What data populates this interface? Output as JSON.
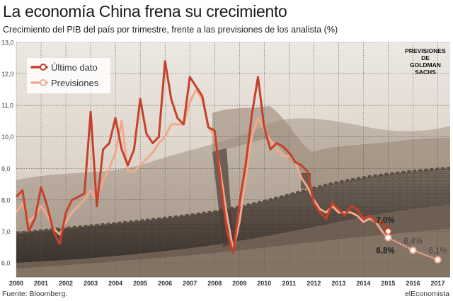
{
  "title": "La economía China frena su crecimiento",
  "subtitle": "Crecimiento del PIB del país por trimestre, frente a las previsiones de los analista (%)",
  "source": "Fuente: Bloomberg.",
  "brand": "elEconomista",
  "colors": {
    "actual": "#c4412a",
    "forecast": "#f0a98c",
    "projection": "#e8a090",
    "grid": "#555555"
  },
  "chart_data": {
    "type": "line",
    "title": "La economía China frena su crecimiento",
    "ylim": [
      6.0,
      13.0
    ],
    "xlim": [
      2000,
      2017.5
    ],
    "grid": true,
    "legend_position": "top-left",
    "y_ticks": [
      "6,0",
      "7,0",
      "8,0",
      "9,0",
      "10,0",
      "11,0",
      "12,0",
      "13,0"
    ],
    "x_ticks": [
      "2000",
      "2001",
      "2002",
      "2003",
      "2004",
      "2005",
      "2006",
      "2007",
      "2008",
      "2009",
      "2010",
      "2011",
      "2012",
      "2013",
      "2014",
      "2015",
      "2016",
      "2017"
    ],
    "series": [
      {
        "name": "Último dato",
        "points": [
          [
            2000.0,
            8.1
          ],
          [
            2000.25,
            8.3
          ],
          [
            2000.5,
            7.0
          ],
          [
            2000.75,
            7.4
          ],
          [
            2001.0,
            8.4
          ],
          [
            2001.25,
            7.8
          ],
          [
            2001.5,
            7.0
          ],
          [
            2001.75,
            6.6
          ],
          [
            2002.0,
            7.6
          ],
          [
            2002.25,
            8.0
          ],
          [
            2002.5,
            8.1
          ],
          [
            2002.75,
            8.2
          ],
          [
            2003.0,
            10.8
          ],
          [
            2003.25,
            7.8
          ],
          [
            2003.5,
            9.6
          ],
          [
            2003.75,
            9.8
          ],
          [
            2004.0,
            10.6
          ],
          [
            2004.25,
            9.6
          ],
          [
            2004.5,
            9.1
          ],
          [
            2004.75,
            9.6
          ],
          [
            2005.0,
            11.2
          ],
          [
            2005.25,
            10.1
          ],
          [
            2005.5,
            9.8
          ],
          [
            2005.75,
            10.0
          ],
          [
            2006.0,
            12.4
          ],
          [
            2006.25,
            11.2
          ],
          [
            2006.5,
            10.6
          ],
          [
            2006.75,
            10.4
          ],
          [
            2007.0,
            11.9
          ],
          [
            2007.25,
            11.6
          ],
          [
            2007.5,
            11.3
          ],
          [
            2007.75,
            10.3
          ],
          [
            2008.0,
            10.2
          ],
          [
            2008.25,
            8.5
          ],
          [
            2008.5,
            7.0
          ],
          [
            2008.75,
            6.3
          ],
          [
            2009.0,
            7.9
          ],
          [
            2009.25,
            9.1
          ],
          [
            2009.5,
            10.7
          ],
          [
            2009.75,
            11.9
          ],
          [
            2010.0,
            10.3
          ],
          [
            2010.25,
            9.6
          ],
          [
            2010.5,
            9.8
          ],
          [
            2010.75,
            9.7
          ],
          [
            2011.0,
            9.5
          ],
          [
            2011.25,
            9.2
          ],
          [
            2011.5,
            9.1
          ],
          [
            2011.75,
            8.9
          ],
          [
            2012.0,
            7.9
          ],
          [
            2012.25,
            7.6
          ],
          [
            2012.5,
            7.4
          ],
          [
            2012.75,
            7.9
          ],
          [
            2013.0,
            7.7
          ],
          [
            2013.25,
            7.5
          ],
          [
            2013.5,
            7.8
          ],
          [
            2013.75,
            7.7
          ],
          [
            2014.0,
            7.4
          ],
          [
            2014.25,
            7.5
          ],
          [
            2014.5,
            7.3
          ],
          [
            2014.75,
            7.3
          ],
          [
            2015.0,
            7.0
          ]
        ]
      },
      {
        "name": "Previsiones",
        "points": [
          [
            2000.0,
            7.6
          ],
          [
            2000.25,
            7.9
          ],
          [
            2000.5,
            7.3
          ],
          [
            2000.75,
            7.5
          ],
          [
            2001.0,
            7.8
          ],
          [
            2001.25,
            7.5
          ],
          [
            2001.5,
            7.1
          ],
          [
            2001.75,
            6.9
          ],
          [
            2002.0,
            7.3
          ],
          [
            2002.25,
            7.6
          ],
          [
            2002.5,
            7.8
          ],
          [
            2002.75,
            8.0
          ],
          [
            2003.0,
            8.3
          ],
          [
            2003.25,
            8.0
          ],
          [
            2003.5,
            8.6
          ],
          [
            2003.75,
            9.0
          ],
          [
            2004.0,
            9.5
          ],
          [
            2004.25,
            10.5
          ],
          [
            2004.5,
            8.9
          ],
          [
            2004.75,
            8.9
          ],
          [
            2005.0,
            9.1
          ],
          [
            2005.25,
            9.3
          ],
          [
            2005.5,
            9.5
          ],
          [
            2005.75,
            9.8
          ],
          [
            2006.0,
            10.0
          ],
          [
            2006.25,
            10.4
          ],
          [
            2006.5,
            10.4
          ],
          [
            2006.75,
            10.4
          ],
          [
            2007.0,
            11.1
          ],
          [
            2007.25,
            11.5
          ],
          [
            2007.5,
            11.2
          ],
          [
            2007.75,
            10.3
          ],
          [
            2008.0,
            10.0
          ],
          [
            2008.25,
            8.8
          ],
          [
            2008.5,
            7.5
          ],
          [
            2008.75,
            6.4
          ],
          [
            2009.0,
            7.3
          ],
          [
            2009.25,
            8.6
          ],
          [
            2009.5,
            10.0
          ],
          [
            2009.75,
            10.6
          ],
          [
            2010.0,
            10.2
          ],
          [
            2010.25,
            9.9
          ],
          [
            2010.5,
            9.6
          ],
          [
            2010.75,
            9.4
          ],
          [
            2011.0,
            9.4
          ],
          [
            2011.25,
            9.2
          ],
          [
            2011.5,
            8.7
          ],
          [
            2011.75,
            8.4
          ],
          [
            2012.0,
            8.0
          ],
          [
            2012.25,
            7.7
          ],
          [
            2012.5,
            7.6
          ],
          [
            2012.75,
            7.8
          ],
          [
            2013.0,
            7.6
          ],
          [
            2013.25,
            7.6
          ],
          [
            2013.5,
            7.6
          ],
          [
            2013.75,
            7.5
          ],
          [
            2014.0,
            7.3
          ],
          [
            2014.25,
            7.4
          ],
          [
            2014.5,
            7.3
          ],
          [
            2014.75,
            7.0
          ],
          [
            2015.0,
            6.8
          ]
        ]
      },
      {
        "name": "Previsiones de Goldman Sachs",
        "points": [
          [
            2015.0,
            6.8
          ],
          [
            2016.0,
            6.4
          ],
          [
            2017.0,
            6.1
          ]
        ]
      }
    ],
    "annotations": [
      {
        "text": "7,0%",
        "x": 2015.0,
        "y": 7.0
      },
      {
        "text": "6,8%",
        "x": 2015.0,
        "y": 6.8
      },
      {
        "text": "6,4%",
        "x": 2016.0,
        "y": 6.4
      },
      {
        "text": "6,1%",
        "x": 2017.0,
        "y": 6.1
      }
    ],
    "projection_label": [
      "PREVISIONES",
      "DE",
      "GOLDMAN",
      "SACHS"
    ]
  }
}
